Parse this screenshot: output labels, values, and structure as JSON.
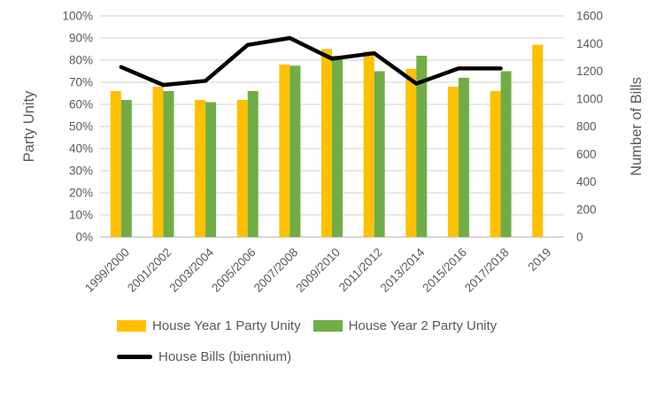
{
  "chart_data": {
    "type": "bar",
    "subtype": "combo-bar-line-dual-axis",
    "title": "",
    "categories": [
      "1999/2000",
      "2001/2002",
      "2003/2004",
      "2005/2006",
      "2007/2008",
      "2009/2010",
      "2011/2012",
      "2013/2014",
      "2015/2016",
      "2017/2018",
      "2019"
    ],
    "series": [
      {
        "name": "House Year 1 Party Unity",
        "type": "bar",
        "axis": "left",
        "color": "#FFC000",
        "values": [
          66,
          68,
          62,
          62,
          78,
          85,
          84,
          76,
          68,
          66,
          87
        ]
      },
      {
        "name": "House Year 2 Party Unity",
        "type": "bar",
        "axis": "left",
        "color": "#70AD47",
        "values": [
          62,
          66,
          61,
          66,
          77.5,
          82,
          75,
          82,
          72,
          75,
          null
        ]
      },
      {
        "name": "House Bills (biennium)",
        "type": "line",
        "axis": "right",
        "color": "#000000",
        "values": [
          1230,
          1100,
          1130,
          1390,
          1440,
          1290,
          1330,
          1110,
          1220,
          1220,
          null
        ]
      }
    ],
    "left_axis": {
      "title": "Party Unity",
      "min": 0,
      "max": 100,
      "step": 10,
      "format": "percent",
      "tick_labels": [
        "0%",
        "10%",
        "20%",
        "30%",
        "40%",
        "50%",
        "60%",
        "70%",
        "80%",
        "90%",
        "100%"
      ]
    },
    "right_axis": {
      "title": "Number of Bills",
      "min": 0,
      "max": 1600,
      "step": 200,
      "tick_labels": [
        "0",
        "200",
        "400",
        "600",
        "800",
        "1000",
        "1200",
        "1400",
        "1600"
      ]
    },
    "grid": true,
    "legend_position": "bottom",
    "colors": {
      "grid_line": "#D9D9D9",
      "axis_line": "#BFBFBF",
      "text": "#595959"
    }
  }
}
